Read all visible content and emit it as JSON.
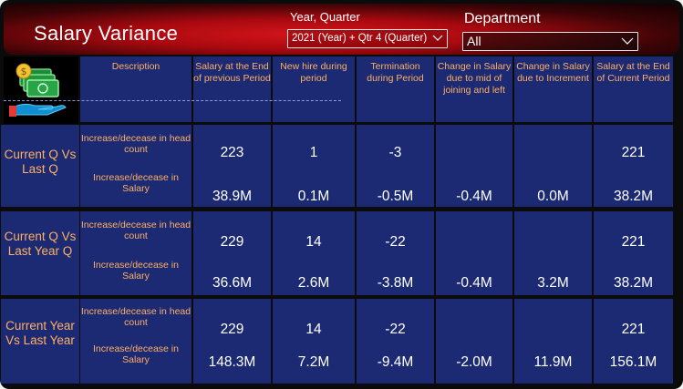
{
  "header": {
    "title": "Salary Variance",
    "year_quarter_label": "Year, Quarter",
    "year_quarter_value": "2021 (Year) + Qtr 4 (Quarter)",
    "department_label": "Department",
    "department_value": "All"
  },
  "columns": [
    "Description",
    "Salary at the End of previous Period",
    "New hire during period",
    "Termination during Period",
    "Change in Salary due to mid of joining and left",
    "Change in Salary due to Increment",
    "Salary at the End of Current Period"
  ],
  "groups": [
    {
      "label": "Current Q Vs Last Q",
      "rows": [
        {
          "description": "Increase/decease in head count",
          "values": [
            "223",
            "1",
            "-3",
            "",
            "",
            "221"
          ]
        },
        {
          "description": "Increase/decease in Salary",
          "values": [
            "38.9M",
            "0.1M",
            "-0.5M",
            "-0.4M",
            "0.0M",
            "38.2M"
          ]
        }
      ]
    },
    {
      "label": "Current Q Vs Last Year Q",
      "rows": [
        {
          "description": "Increase/decease in head count",
          "values": [
            "229",
            "14",
            "-22",
            "",
            "",
            "221"
          ]
        },
        {
          "description": "Increase/decease in Salary",
          "values": [
            "36.6M",
            "2.6M",
            "-3.8M",
            "-0.4M",
            "3.2M",
            "38.2M"
          ]
        }
      ]
    },
    {
      "label": "Current Year Vs Last Year",
      "rows": [
        {
          "description": "Increase/decease in head count",
          "values": [
            "229",
            "14",
            "-22",
            "",
            "",
            "221"
          ]
        },
        {
          "description": "Increase/decease in Salary",
          "values": [
            "148.3M",
            "7.2M",
            "-9.4M",
            "-2.0M",
            "11.9M",
            "156.1M"
          ]
        }
      ]
    }
  ],
  "icon": "money-hand-icon",
  "colors": {
    "header_red": "#c2121a",
    "navy": "#1b2a72",
    "label_orange": "#ffb066",
    "text_white": "#ffffff"
  }
}
